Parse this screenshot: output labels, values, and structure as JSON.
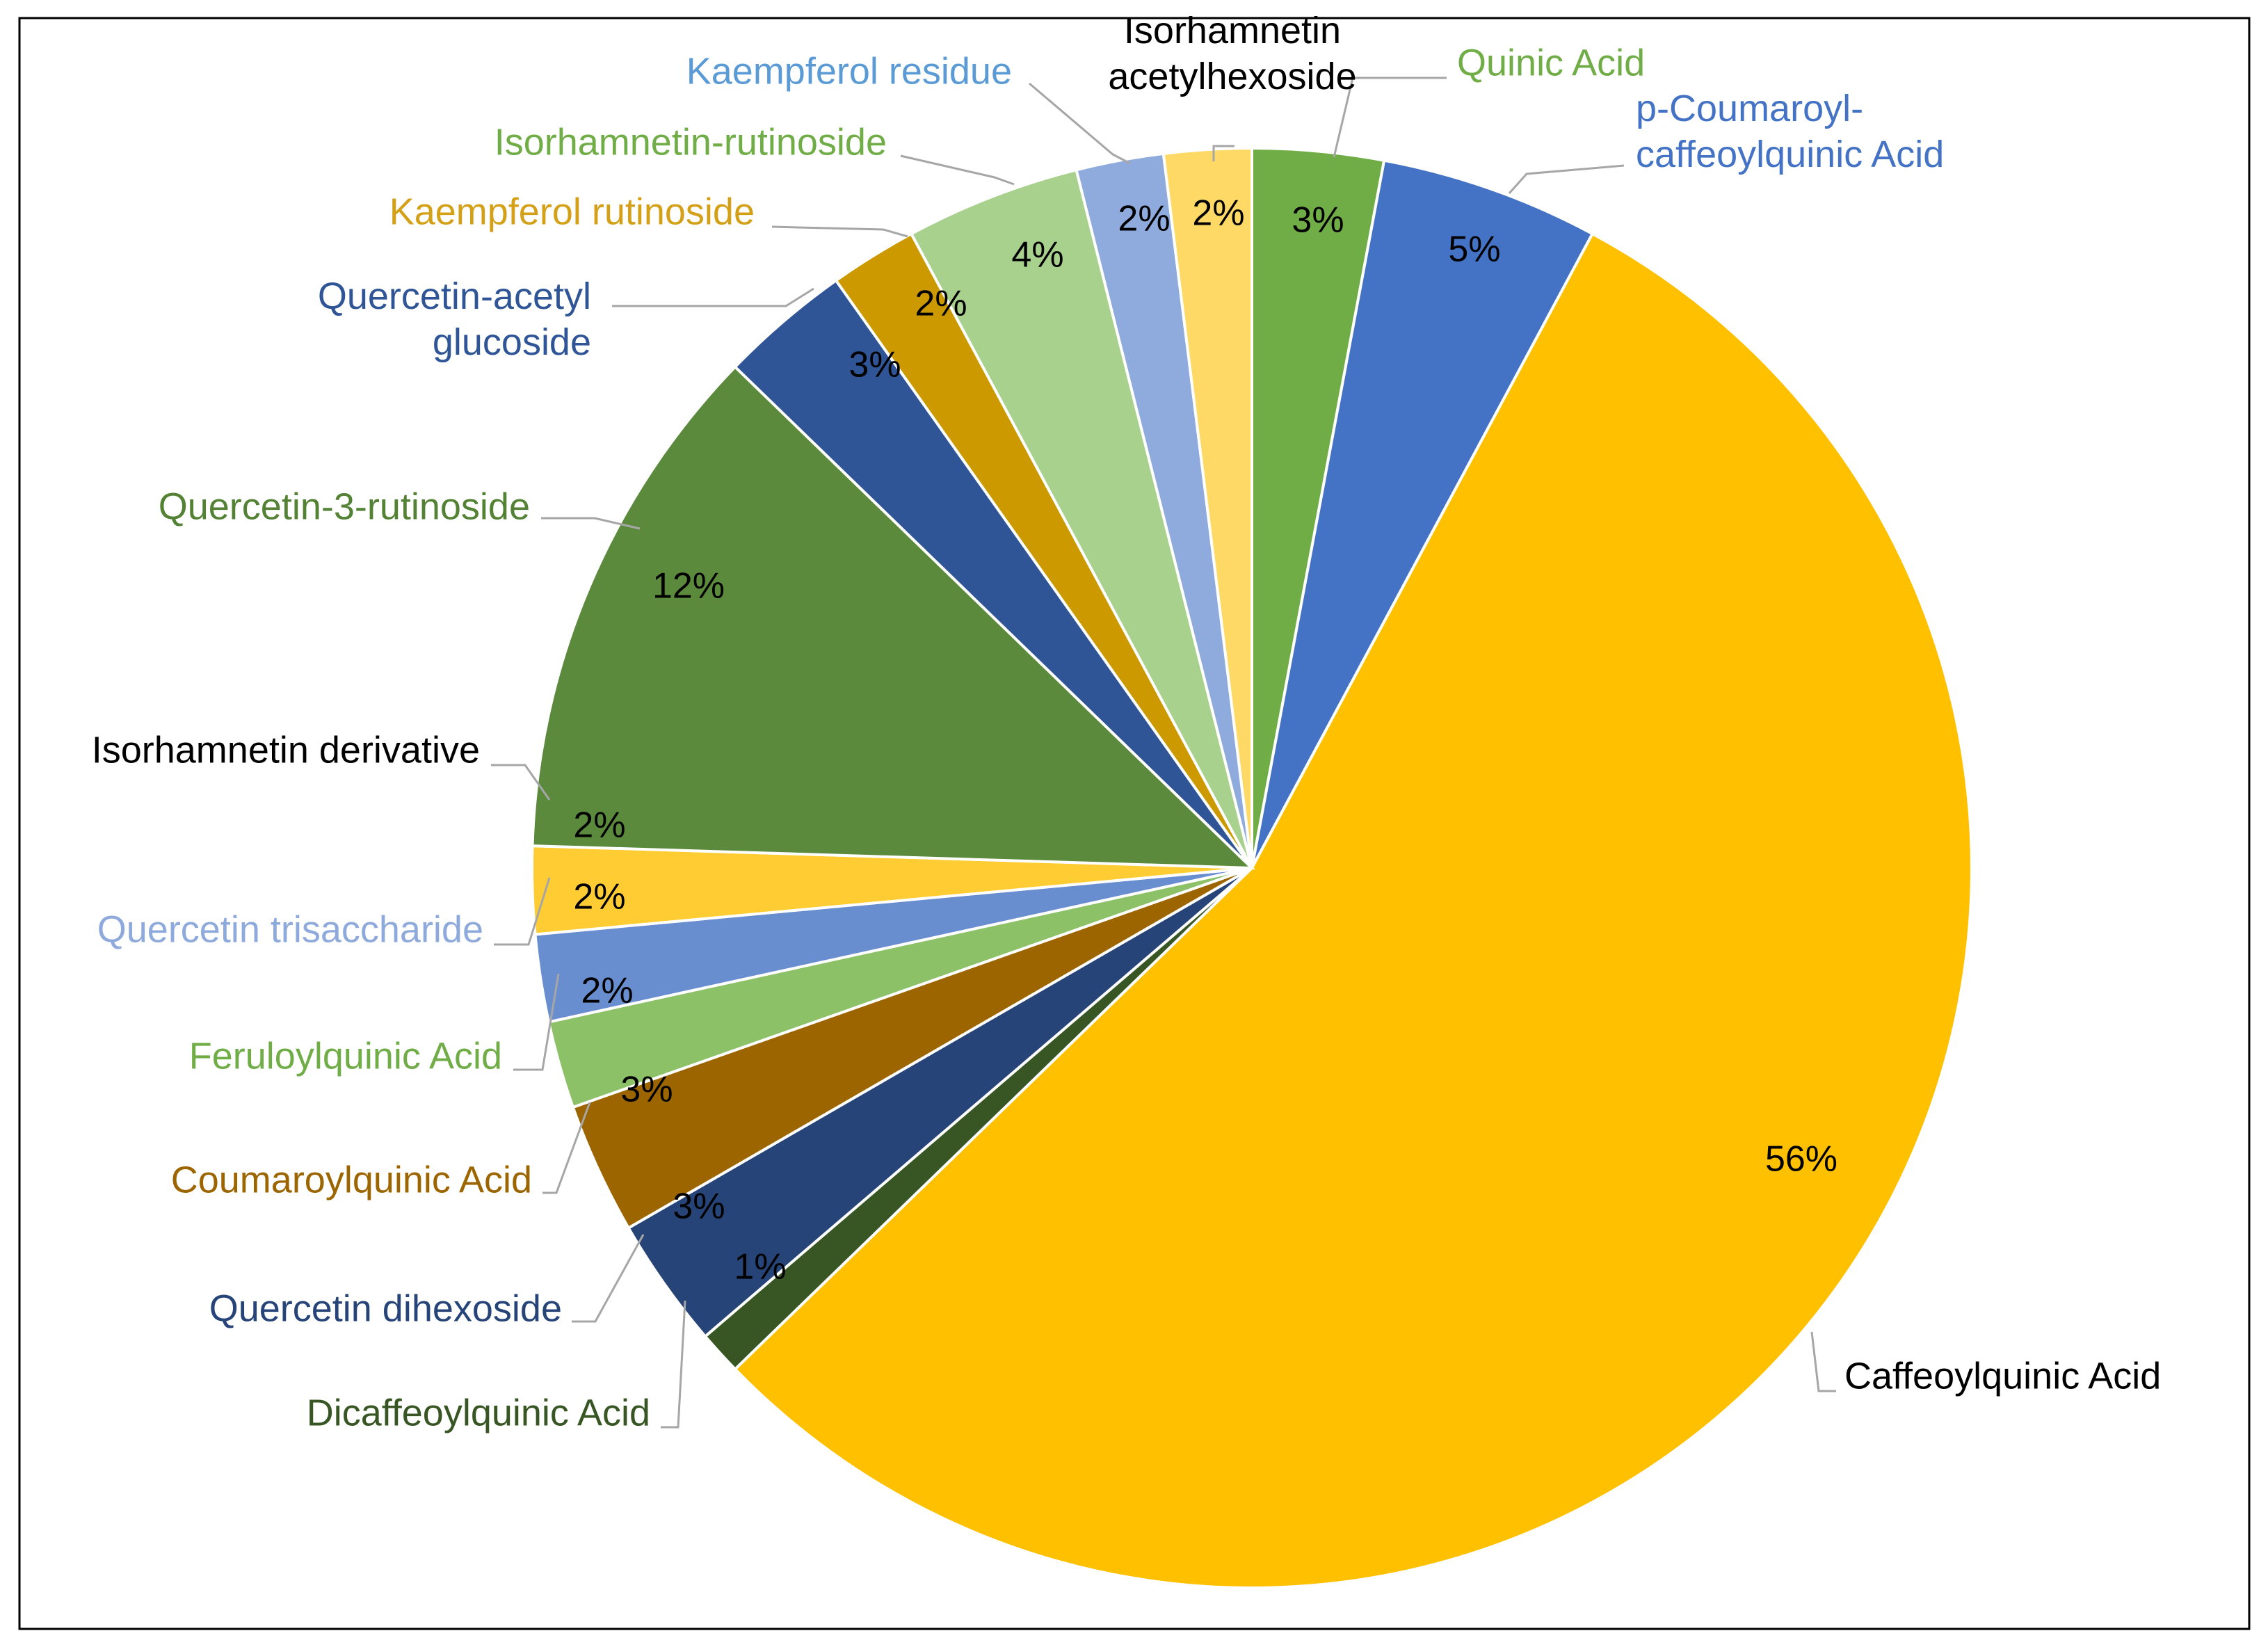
{
  "chart_data": {
    "type": "pie",
    "title": "",
    "start_angle_deg": 0,
    "direction": "clockwise",
    "slices": [
      {
        "name": "Quinic Acid",
        "value": 3,
        "label": "3%",
        "color": "#70AD47",
        "label_color": "#70AD47"
      },
      {
        "name": "p-Coumaroyl-caffeoylquinic Acid",
        "label_lines": [
          "p-Coumaroyl-",
          "caffeoylquinic Acid"
        ],
        "value": 5,
        "label": "5%",
        "color": "#4472C4",
        "label_color": "#4472C4"
      },
      {
        "name": "Caffeoylquinic Acid",
        "value": 56,
        "label": "56%",
        "color": "#FFC000",
        "label_color": "#000000"
      },
      {
        "name": "Dicaffeoylquinic Acid",
        "value": 1,
        "label": "1%",
        "color": "#375623",
        "label_color": "#375623"
      },
      {
        "name": "Quercetin dihexoside",
        "value": 3,
        "label": "3%",
        "color": "#264478",
        "label_color": "#264478"
      },
      {
        "name": "Coumaroylquinic Acid",
        "value": 3,
        "label": "3%",
        "color": "#9C6500",
        "label_color": "#9C6500"
      },
      {
        "name": "Feruloylquinic Acid",
        "value": 2,
        "label": "2%",
        "color": "#8CC168",
        "label_color": "#70AD47"
      },
      {
        "name": "Quercetin trisaccharide",
        "value": 2,
        "label": "2%",
        "color": "#698ED0",
        "label_color": "#8EA9DB"
      },
      {
        "name": "Isorhamnetin derivative",
        "value": 2,
        "label": "2%",
        "color": "#FFCD33",
        "label_color": "#000000"
      },
      {
        "name": "Quercetin-3-rutinoside",
        "value": 12,
        "label": "12%",
        "color": "#5B8A3C",
        "label_color": "#548235"
      },
      {
        "name": "Quercetin-acetyl glucoside",
        "label_lines": [
          "Quercetin-acetyl",
          "glucoside"
        ],
        "value": 3,
        "label": "3%",
        "color": "#2F5597",
        "label_color": "#2F5597"
      },
      {
        "name": "Kaempferol rutinoside",
        "value": 2,
        "label": "2%",
        "color": "#CC9A00",
        "label_color": "#D4A017"
      },
      {
        "name": "Isorhamnetin-rutinoside",
        "value": 4,
        "label": "4%",
        "color": "#A9D18E",
        "label_color": "#70AD47"
      },
      {
        "name": "Kaempferol residue",
        "value": 2,
        "label": "2%",
        "color": "#8FAADC",
        "label_color": "#5B9BD5"
      },
      {
        "name": "Isorhamnetin acetylhexoside",
        "label_lines": [
          "Isorhamnetin",
          "acetylhexoside"
        ],
        "value": 2,
        "label": "2%",
        "color": "#FFD966",
        "label_color": "#000000"
      }
    ]
  }
}
